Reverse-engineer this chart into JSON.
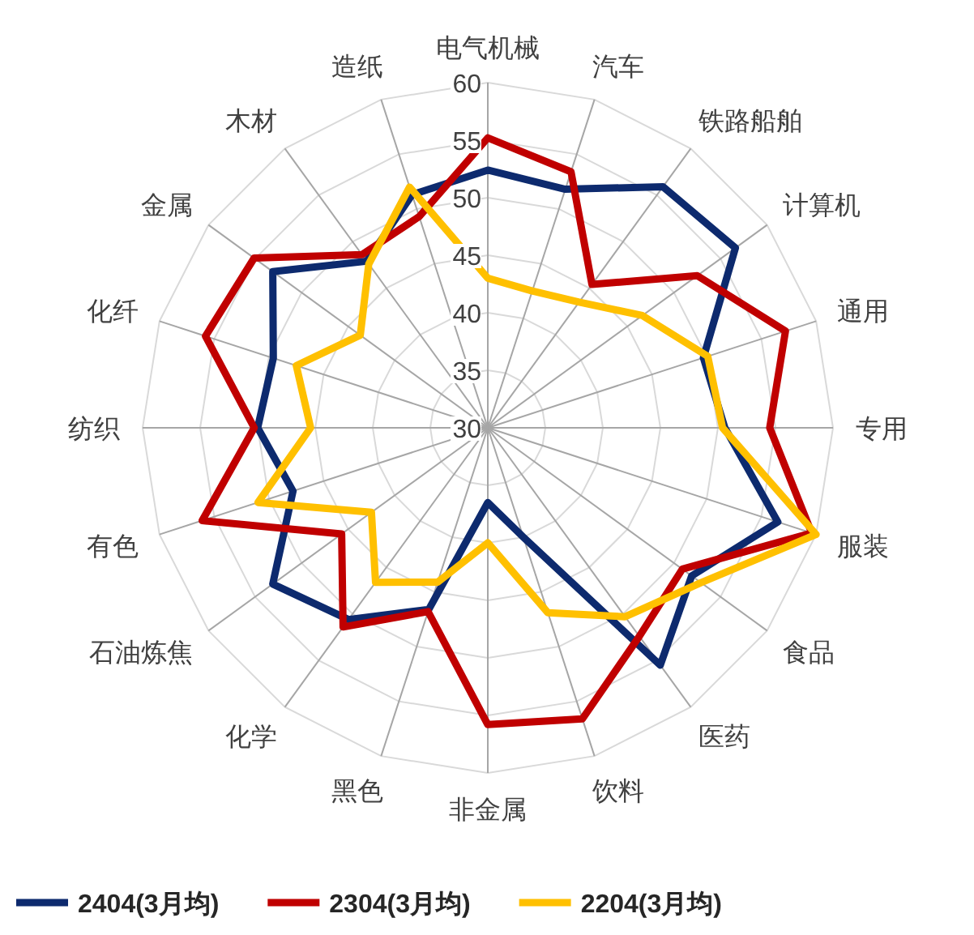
{
  "chart_data": {
    "type": "radar",
    "categories": [
      "电气机械",
      "汽车",
      "铁路船舶",
      "计算机",
      "通用",
      "专用",
      "服装",
      "食品",
      "医药",
      "饮料",
      "非金属",
      "黑色",
      "化学",
      "石油炼焦",
      "有色",
      "纺织",
      "化纤",
      "金属",
      "木材",
      "造纸"
    ],
    "ylim": [
      30,
      60
    ],
    "yticks": [
      30,
      35,
      40,
      45,
      50,
      55,
      60
    ],
    "grid": true,
    "legend": "bottom",
    "series": [
      {
        "name": "2404(3月均)",
        "color": "#0d2a6e",
        "values": [
          52.4,
          51.8,
          55.9,
          56.6,
          49.7,
          50.6,
          56.5,
          51.9,
          55.5,
          40,
          36.5,
          46.6,
          50.6,
          53.1,
          47.8,
          50,
          49.6,
          53.1,
          47.9,
          51.3
        ]
      },
      {
        "name": "2304(3月均)",
        "color": "#c00000",
        "values": [
          55.2,
          53.4,
          45.4,
          52.5,
          57.2,
          54.5,
          59.6,
          50.9,
          52.4,
          56.6,
          55.8,
          46.8,
          51.4,
          45.7,
          56.1,
          50.3,
          55.8,
          55.1,
          48.6,
          49.3
        ]
      },
      {
        "name": "2204(3月均)",
        "color": "#ffc000",
        "values": [
          43,
          42.5,
          43.5,
          46.6,
          50.1,
          50.4,
          60,
          52.9,
          50.3,
          46.9,
          40,
          44.1,
          46.6,
          42.5,
          51,
          45.4,
          47.5,
          43.7,
          47.6,
          52
        ]
      }
    ]
  }
}
